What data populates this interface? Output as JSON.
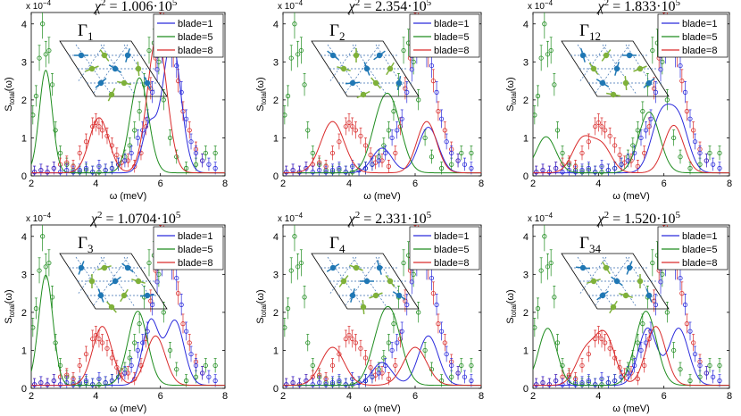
{
  "figure": {
    "xlabel": "ω (meV)",
    "ylabel_main": "S",
    "ylabel_sub": "total",
    "ylabel_tail": "(ω)",
    "yscale": "x 10",
    "yscale_exp": "−4",
    "legend": [
      "blade=1",
      "blade=5",
      "blade=8"
    ],
    "colors": {
      "blade=1": "#2b2bdc",
      "blade=5": "#1e8c1e",
      "blade=8": "#d92b2b",
      "lattice": "#000000",
      "dashed": "#3a6fb0",
      "spin_blue": "#1f77b4",
      "spin_green": "#7fb13a"
    }
  },
  "chart_data": [
    {
      "type": "line",
      "title_prefix": "χ",
      "title_sup": "2",
      "title_value": " = 1.006·10",
      "title_exp": "5",
      "irrep": "Γ",
      "irrep_sub": "1",
      "xlim": [
        2,
        8
      ],
      "ylim": [
        0,
        4.3
      ],
      "xticks": [
        2,
        4,
        6,
        8
      ],
      "yticks": [
        0,
        1,
        2,
        3,
        4
      ],
      "series": [
        {
          "name": "blade=1",
          "peaks": [
            [
              5.65,
              1.2,
              0.22
            ],
            [
              6.35,
              3.5,
              0.28
            ]
          ]
        },
        {
          "name": "blade=5",
          "peaks": [
            [
              2.45,
              2.7,
              0.2
            ],
            [
              5.35,
              2.5,
              0.28
            ]
          ]
        },
        {
          "name": "blade=8",
          "peaks": [
            [
              4.1,
              1.45,
              0.3
            ],
            [
              5.9,
              3.6,
              0.3
            ]
          ]
        }
      ]
    },
    {
      "type": "line",
      "title_prefix": "χ",
      "title_sup": "2",
      "title_value": " = 2.354·10",
      "title_exp": "5",
      "irrep": "Γ",
      "irrep_sub": "2",
      "xlim": [
        2,
        8
      ],
      "ylim": [
        0,
        4.3
      ],
      "xticks": [
        2,
        4,
        6,
        8
      ],
      "yticks": [
        0,
        1,
        2,
        3,
        4
      ],
      "series": [
        {
          "name": "blade=1",
          "peaks": [
            [
              5.0,
              0.65,
              0.3
            ],
            [
              6.4,
              1.2,
              0.3
            ]
          ]
        },
        {
          "name": "blade=5",
          "peaks": [
            [
              4.9,
              1.0,
              0.3
            ],
            [
              5.3,
              1.55,
              0.32
            ]
          ]
        },
        {
          "name": "blade=8",
          "peaks": [
            [
              3.5,
              1.35,
              0.35
            ],
            [
              6.35,
              1.35,
              0.3
            ]
          ]
        }
      ]
    },
    {
      "type": "line",
      "title_prefix": "χ",
      "title_sup": "2",
      "title_value": " = 1.833·10",
      "title_exp": "5",
      "irrep": "Γ",
      "irrep_sub": "12",
      "xlim": [
        2,
        8
      ],
      "ylim": [
        0,
        4.3
      ],
      "xticks": [
        2,
        4,
        6,
        8
      ],
      "yticks": [
        0,
        1,
        2,
        3,
        4
      ],
      "series": [
        {
          "name": "blade=1",
          "peaks": [
            [
              5.9,
              1.4,
              0.3
            ],
            [
              6.45,
              1.35,
              0.3
            ]
          ]
        },
        {
          "name": "blade=5",
          "peaks": [
            [
              2.4,
              0.95,
              0.3
            ],
            [
              5.55,
              1.6,
              0.32
            ]
          ]
        },
        {
          "name": "blade=8",
          "peaks": [
            [
              3.5,
              0.85,
              0.3
            ],
            [
              4.1,
              0.7,
              0.3
            ],
            [
              6.3,
              1.25,
              0.3
            ]
          ]
        }
      ]
    },
    {
      "type": "line",
      "title_prefix": "χ",
      "title_sup": "2",
      "title_value": " = 1.0704·10",
      "title_exp": "5",
      "irrep": "Γ",
      "irrep_sub": "3",
      "xlim": [
        2,
        8
      ],
      "ylim": [
        0,
        4.3
      ],
      "xticks": [
        2,
        4,
        6,
        8
      ],
      "yticks": [
        0,
        1,
        2,
        3,
        4
      ],
      "series": [
        {
          "name": "blade=1",
          "peaks": [
            [
              5.7,
              1.7,
              0.25
            ],
            [
              6.45,
              1.7,
              0.28
            ]
          ]
        },
        {
          "name": "blade=5",
          "peaks": [
            [
              2.45,
              2.9,
              0.22
            ],
            [
              5.3,
              1.95,
              0.3
            ]
          ]
        },
        {
          "name": "blade=8",
          "peaks": [
            [
              4.2,
              1.55,
              0.3
            ],
            [
              5.85,
              1.3,
              0.3
            ]
          ]
        }
      ]
    },
    {
      "type": "line",
      "title_prefix": "χ",
      "title_sup": "2",
      "title_value": " = 2.331·10",
      "title_exp": "5",
      "irrep": "Γ",
      "irrep_sub": "4",
      "xlim": [
        2,
        8
      ],
      "ylim": [
        0,
        4.3
      ],
      "xticks": [
        2,
        4,
        6,
        8
      ],
      "yticks": [
        0,
        1,
        2,
        3,
        4
      ],
      "series": [
        {
          "name": "blade=1",
          "peaks": [
            [
              5.0,
              0.6,
              0.3
            ],
            [
              6.4,
              1.3,
              0.3
            ]
          ]
        },
        {
          "name": "blade=5",
          "peaks": [
            [
              4.9,
              0.9,
              0.3
            ],
            [
              5.3,
              1.6,
              0.32
            ]
          ]
        },
        {
          "name": "blade=8",
          "peaks": [
            [
              3.5,
              1.0,
              0.35
            ],
            [
              6.0,
              1.0,
              0.35
            ]
          ]
        }
      ]
    },
    {
      "type": "line",
      "title_prefix": "χ",
      "title_sup": "2",
      "title_value": " = 1.520·10",
      "title_exp": "5",
      "irrep": "Γ",
      "irrep_sub": "34",
      "xlim": [
        2,
        8
      ],
      "ylim": [
        0,
        4.3
      ],
      "xticks": [
        2,
        4,
        6,
        8
      ],
      "yticks": [
        0,
        1,
        2,
        3,
        4
      ],
      "series": [
        {
          "name": "blade=1",
          "peaks": [
            [
              5.5,
              1.5,
              0.28
            ],
            [
              6.45,
              1.5,
              0.3
            ]
          ]
        },
        {
          "name": "blade=5",
          "peaks": [
            [
              2.45,
              1.5,
              0.28
            ],
            [
              5.45,
              1.95,
              0.32
            ]
          ]
        },
        {
          "name": "blade=8",
          "peaks": [
            [
              3.6,
              0.85,
              0.3
            ],
            [
              4.2,
              1.3,
              0.3
            ],
            [
              5.75,
              1.55,
              0.3
            ]
          ]
        }
      ]
    }
  ],
  "measured_data": {
    "note": "Approximate open-circle data with error bars, per blade, shared by all panels (meV, 1e-4 units)",
    "blade=1": {
      "x": [
        2.1,
        2.3,
        2.5,
        2.7,
        2.9,
        3.1,
        3.3,
        3.5,
        3.7,
        3.9,
        4.1,
        4.3,
        4.5,
        4.7,
        4.9,
        5.1,
        5.3,
        5.45,
        5.6,
        5.75,
        5.9,
        6.05,
        6.2,
        6.35,
        6.5,
        6.65,
        6.8,
        6.95,
        7.1,
        7.3,
        7.5,
        7.7
      ],
      "y": [
        0.1,
        0.15,
        0.1,
        0.2,
        0.1,
        0.15,
        0.1,
        0.15,
        0.2,
        0.1,
        0.25,
        0.15,
        0.2,
        0.3,
        0.4,
        0.6,
        1.0,
        1.2,
        1.5,
        2.2,
        2.8,
        3.3,
        3.5,
        3.2,
        2.9,
        2.2,
        1.5,
        0.9,
        0.6,
        0.4,
        0.3,
        0.2
      ]
    },
    "blade=5": {
      "x": [
        2.05,
        2.15,
        2.25,
        2.35,
        2.45,
        2.55,
        2.65,
        2.75,
        2.9,
        3.1,
        3.3,
        3.5,
        3.7,
        3.9,
        4.1,
        4.3,
        4.5,
        4.7,
        4.9,
        5.05,
        5.2,
        5.35,
        5.5,
        5.65,
        5.8,
        5.95,
        6.1,
        6.3,
        6.5,
        6.8,
        7.1,
        7.4,
        7.7
      ],
      "y": [
        1.6,
        2.1,
        3.1,
        4.0,
        3.2,
        3.3,
        2.4,
        1.2,
        0.6,
        0.3,
        0.15,
        0.1,
        0.15,
        0.1,
        0.1,
        0.15,
        0.2,
        0.3,
        0.5,
        0.8,
        1.2,
        1.7,
        2.4,
        3.3,
        3.5,
        3.0,
        2.0,
        1.0,
        0.5,
        0.2,
        0.3,
        0.6,
        0.6
      ]
    },
    "blade=8": {
      "x": [
        2.1,
        2.3,
        2.5,
        2.7,
        2.9,
        3.1,
        3.3,
        3.5,
        3.7,
        3.9,
        4.0,
        4.1,
        4.2,
        4.35,
        4.5,
        4.65,
        4.8,
        5.0,
        5.2,
        5.4,
        5.55,
        5.7,
        5.85,
        6.0,
        6.1,
        6.25,
        6.4,
        6.55,
        6.7,
        6.9,
        7.1,
        7.3
      ],
      "y": [
        0.1,
        0.15,
        0.1,
        0.2,
        0.3,
        0.35,
        0.25,
        0.6,
        0.9,
        1.3,
        1.4,
        1.3,
        1.2,
        1.05,
        0.8,
        0.55,
        0.35,
        0.4,
        0.25,
        0.6,
        1.3,
        2.3,
        3.1,
        3.9,
        4.2,
        3.7,
        3.2,
        2.5,
        1.7,
        1.2,
        0.7,
        0.4
      ]
    }
  }
}
